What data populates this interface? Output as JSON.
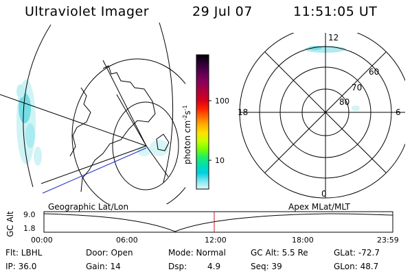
{
  "header": {
    "title": "Ultraviolet Imager",
    "date": "29 Jul 07",
    "time": "11:51:05 UT"
  },
  "colorbar": {
    "unit_label": "photon cm",
    "unit_sup1": "-2",
    "unit_s": "s",
    "unit_sup2": "-1",
    "ticks": [
      "100",
      "10"
    ],
    "colors": [
      "#000000",
      "#2a0033",
      "#5c0050",
      "#8a005a",
      "#b0003e",
      "#d80018",
      "#ff2000",
      "#ff6a00",
      "#ffae00",
      "#ffe000",
      "#c8ff00",
      "#7cff00",
      "#20f060",
      "#00e0b0",
      "#00d0e0",
      "#80e8f0",
      "#e0f8fa"
    ]
  },
  "polar": {
    "mlt_labels": {
      "top": "12",
      "right": "6",
      "bottom": "0",
      "left": "18"
    },
    "lat_labels": [
      "60",
      "70",
      "80"
    ]
  },
  "map_labels": {
    "left": "Geographic Lat/Lon",
    "right": "Apex MLat/MLT"
  },
  "timeline": {
    "axis_label": "GC Alt",
    "ytick_top": "9.0",
    "ytick_bottom": "1.8",
    "xticks": [
      "00:00",
      "06:00",
      "12:00",
      "18:00",
      "23:59"
    ],
    "current_time_color": "#c01818"
  },
  "info": {
    "row1": {
      "filter": "Flt: LBHL",
      "door": "Door: Open",
      "mode": "Mode: Normal",
      "gc_alt": "GC Alt: 5.5 Re",
      "glat": "GLat: -72.7"
    },
    "row2": {
      "ip": "IP: 36.0",
      "gain": "Gain: 14",
      "dsp_label": "Dsp:",
      "dsp_value": "4.9",
      "seq": "Seq: 39",
      "glon": "GLon: 48.7"
    }
  }
}
